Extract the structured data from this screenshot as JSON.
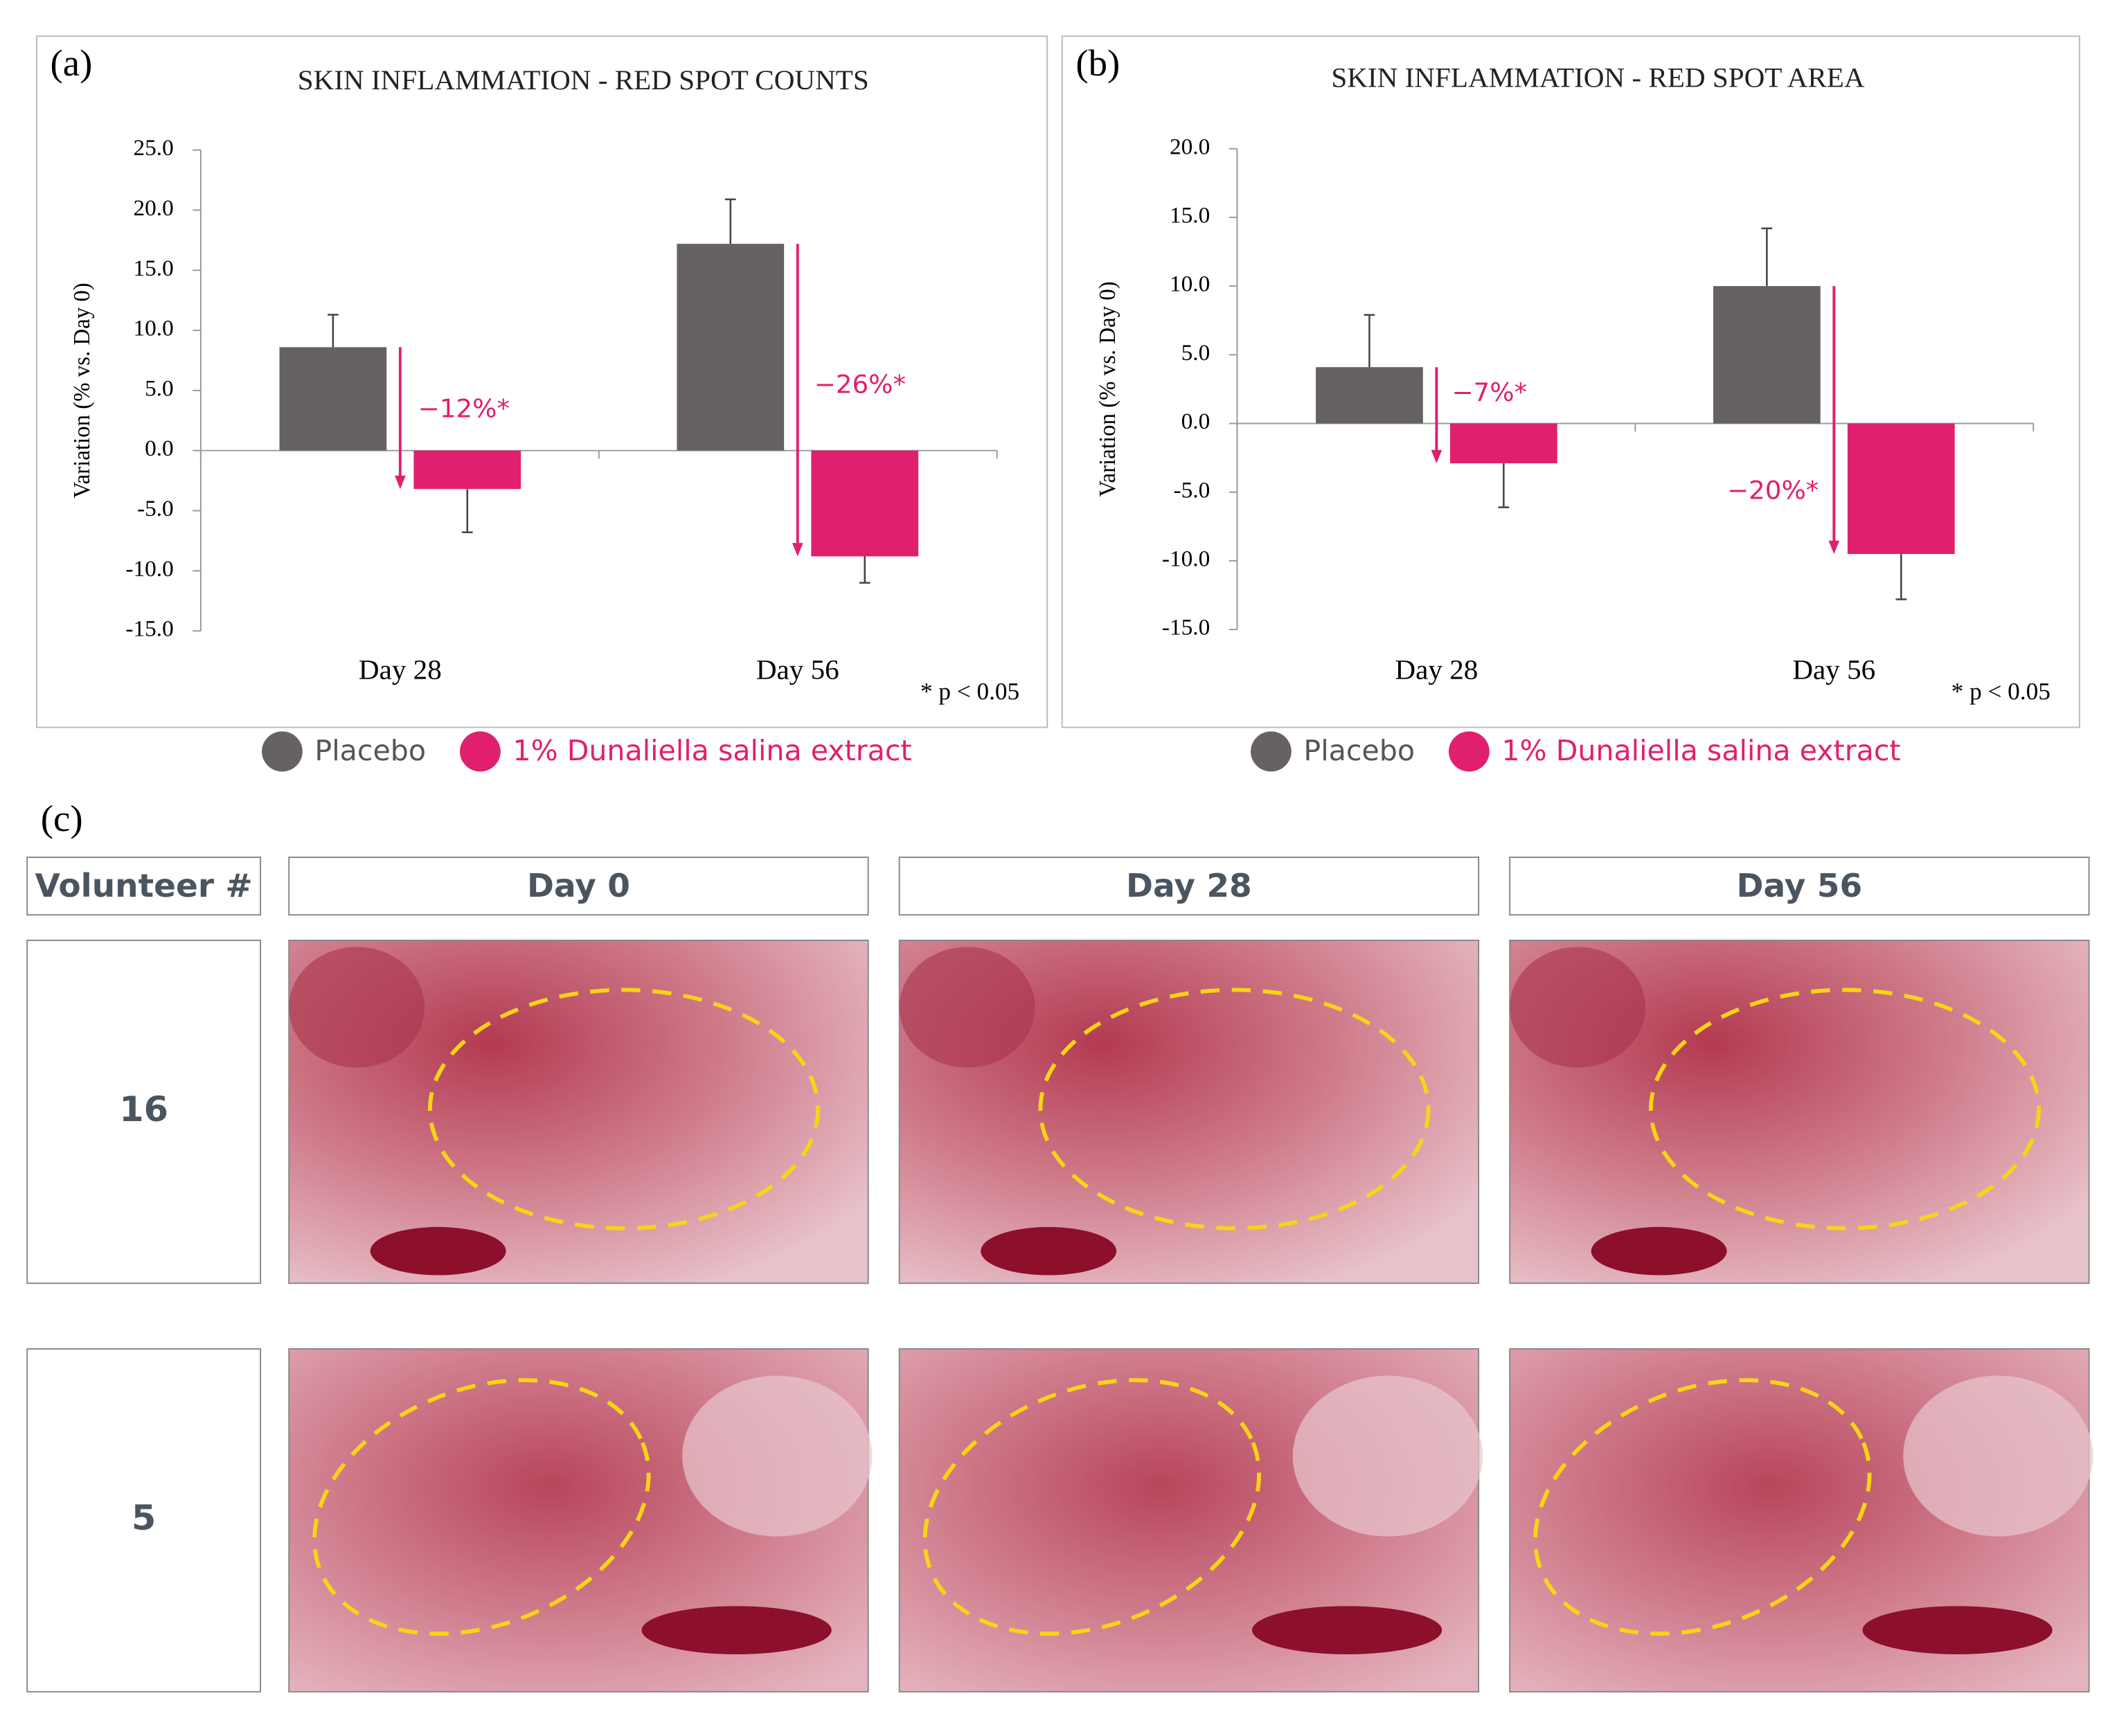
{
  "chart_data": [
    {
      "type": "bar",
      "panel": "(a)",
      "title": "SKIN INFLAMMATION - RED SPOT COUNTS",
      "y_label": "Variation (% vs. Day 0)",
      "categories": [
        "Day 28",
        "Day 56"
      ],
      "series": [
        {
          "name": "Placebo",
          "color": "#666163",
          "values": [
            8.6,
            17.2
          ],
          "errors": [
            2.7,
            3.7
          ]
        },
        {
          "name": "1% Dunaliella salina extract",
          "color": "#e0206e",
          "values": [
            -3.2,
            -8.8
          ],
          "errors": [
            3.6,
            2.2
          ]
        }
      ],
      "annotations": [
        "−12%*",
        "−26%*"
      ],
      "footnote": "* p < 0.05",
      "ylim": [
        -15,
        25
      ],
      "yticks": [
        {
          "value": 25,
          "label": "25.0"
        },
        {
          "value": 20,
          "label": "20.0"
        },
        {
          "value": 15,
          "label": "15.0"
        },
        {
          "value": 10,
          "label": "10.0"
        },
        {
          "value": 5,
          "label": "5.0"
        },
        {
          "value": 0,
          "label": "0.0"
        },
        {
          "value": -5,
          "label": "-5.0"
        },
        {
          "value": -10,
          "label": "-10.0"
        },
        {
          "value": -15,
          "label": "-15.0"
        }
      ]
    },
    {
      "type": "bar",
      "panel": "(b)",
      "title": "SKIN INFLAMMATION - RED SPOT AREA",
      "y_label": "Variation (% vs. Day 0)",
      "categories": [
        "Day 28",
        "Day 56"
      ],
      "series": [
        {
          "name": "Placebo",
          "color": "#666163",
          "values": [
            4.1,
            10.0
          ],
          "errors": [
            3.8,
            4.2
          ]
        },
        {
          "name": "1% Dunaliella salina extract",
          "color": "#e0206e",
          "values": [
            -2.9,
            -9.5
          ],
          "errors": [
            3.2,
            3.3
          ]
        }
      ],
      "annotations": [
        "−7%*",
        "−20%*"
      ],
      "footnote": "* p < 0.05",
      "ylim": [
        -15,
        20
      ],
      "yticks": [
        {
          "value": 20,
          "label": "20.0"
        },
        {
          "value": 15,
          "label": "15.0"
        },
        {
          "value": 10,
          "label": "10.0"
        },
        {
          "value": 5,
          "label": "5.0"
        },
        {
          "value": 0,
          "label": "0.0"
        },
        {
          "value": -5,
          "label": "-5.0"
        },
        {
          "value": -10,
          "label": "-10.0"
        },
        {
          "value": -15,
          "label": "-15.0"
        }
      ]
    }
  ],
  "panel_c": {
    "label": "(c)",
    "headers": [
      "Volunteer #",
      "Day 0",
      "Day 28",
      "Day 56"
    ],
    "rows": [
      "16",
      "5"
    ]
  }
}
